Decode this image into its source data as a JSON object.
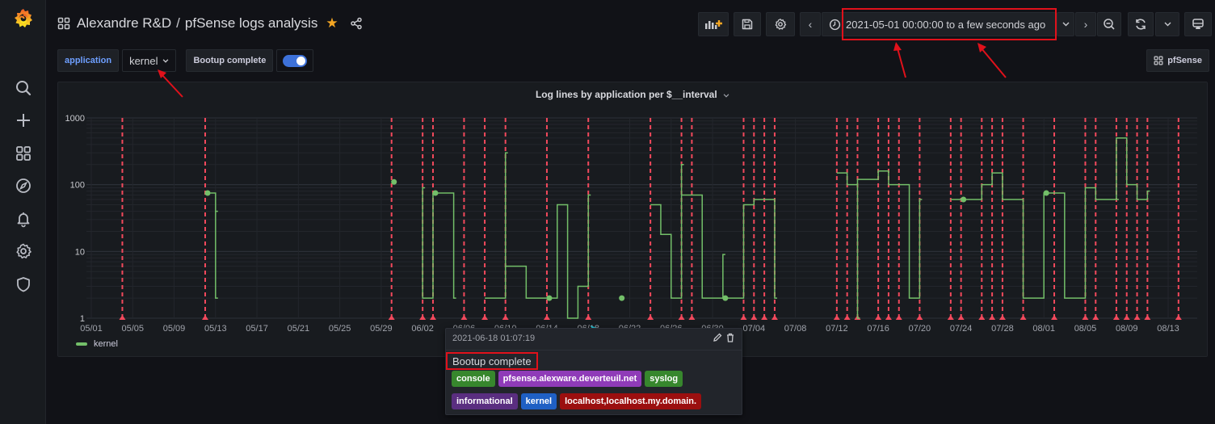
{
  "sidebar": {
    "items": [
      {
        "name": "search",
        "icon": "search-icon"
      },
      {
        "name": "create",
        "icon": "plus-icon"
      },
      {
        "name": "dashboards",
        "icon": "dashboards-grid-icon"
      },
      {
        "name": "explore",
        "icon": "compass-icon"
      },
      {
        "name": "alerting",
        "icon": "bell-icon"
      },
      {
        "name": "configuration",
        "icon": "gear-icon"
      },
      {
        "name": "server-admin",
        "icon": "shield-icon"
      }
    ]
  },
  "header": {
    "folder": "Alexandre R&D",
    "separator": "/",
    "title": "pfSense logs analysis",
    "starred": true
  },
  "toolbar": {
    "add_panel": "add-panel-icon",
    "save": "save-icon",
    "settings": "gear-icon",
    "time_back": "‹",
    "time_range": "2021-05-01 00:00:00 to a few seconds ago",
    "time_forward": "›",
    "zoom_out": "zoom-out-icon",
    "refresh": "refresh-icon",
    "refresh_interval": "⌄",
    "tv_mode": "monitor-icon"
  },
  "variables": {
    "application_label": "application",
    "application_value": "kernel",
    "annotation_label": "Bootup complete",
    "annotation_enabled": true
  },
  "dashboard_link": {
    "label": "pfSense"
  },
  "panel": {
    "title": "Log lines by application per $__interval",
    "legend": [
      {
        "name": "kernel",
        "color": "#73bf69"
      }
    ]
  },
  "tooltip": {
    "time": "2021-06-18 01:07:19",
    "text": "Bootup complete",
    "tags": [
      {
        "label": "console",
        "color": "#37872d"
      },
      {
        "label": "pfsense.alexware.deverteuil.net",
        "color": "#8f3bb8"
      },
      {
        "label": "syslog",
        "color": "#37872d"
      },
      {
        "label": "informational",
        "color": "#5a2e80"
      },
      {
        "label": "kernel",
        "color": "#1f60c4"
      },
      {
        "label": "localhost,localhost.my.domain.",
        "color": "#9b0f0f"
      }
    ]
  },
  "colors": {
    "annotation": "#f2495c",
    "series": "#73bf69",
    "highlight_box": "#e0111b",
    "arrow": "#e0111b",
    "cursor": "#26c6da"
  },
  "chart_data": {
    "type": "line",
    "title": "Log lines by application per $__interval",
    "xlabel": "",
    "ylabel": "",
    "yscale": "log",
    "ylim": [
      1,
      1000
    ],
    "y_ticks": [
      "1",
      "10",
      "100",
      "1000"
    ],
    "x_ticks": [
      "05/01",
      "05/05",
      "05/09",
      "05/13",
      "05/17",
      "05/21",
      "05/25",
      "05/29",
      "06/02",
      "06/06",
      "06/10",
      "06/14",
      "06/18",
      "06/22",
      "06/26",
      "06/30",
      "07/04",
      "07/08",
      "07/12",
      "07/16",
      "07/20",
      "07/24",
      "07/28",
      "08/01",
      "08/05",
      "08/09",
      "08/13"
    ],
    "grid": true,
    "legend_position": "bottom-left",
    "series": [
      {
        "name": "kernel",
        "style": "step",
        "points": [
          {
            "x": "05/12",
            "y": 75
          },
          {
            "x": "05/13",
            "y": 40
          },
          {
            "x": "05/13",
            "y": 2
          },
          {
            "x": "05/30",
            "y": 110
          },
          {
            "x": "06/02",
            "y": 90
          },
          {
            "x": "06/02",
            "y": 2
          },
          {
            "x": "06/03",
            "y": 75
          },
          {
            "x": "06/05",
            "y": 2
          },
          {
            "x": "06/08",
            "y": 2
          },
          {
            "x": "06/10",
            "y": 300
          },
          {
            "x": "06/10",
            "y": 6
          },
          {
            "x": "06/12",
            "y": 2
          },
          {
            "x": "06/14",
            "y": 2
          },
          {
            "x": "06/15",
            "y": 50
          },
          {
            "x": "06/16",
            "y": 1
          },
          {
            "x": "06/17",
            "y": 3
          },
          {
            "x": "06/18",
            "y": 70
          },
          {
            "x": "06/21",
            "y": 2
          },
          {
            "x": "06/24",
            "y": 50
          },
          {
            "x": "06/25",
            "y": 18
          },
          {
            "x": "06/26",
            "y": 2
          },
          {
            "x": "06/27",
            "y": 200
          },
          {
            "x": "06/27",
            "y": 70
          },
          {
            "x": "06/29",
            "y": 2
          },
          {
            "x": "07/01",
            "y": 9
          },
          {
            "x": "07/01",
            "y": 2
          },
          {
            "x": "07/03",
            "y": 50
          },
          {
            "x": "07/04",
            "y": 60
          },
          {
            "x": "07/06",
            "y": 2
          },
          {
            "x": "07/12",
            "y": 150
          },
          {
            "x": "07/13",
            "y": 100
          },
          {
            "x": "07/14",
            "y": 1
          },
          {
            "x": "07/14",
            "y": 120
          },
          {
            "x": "07/16",
            "y": 160
          },
          {
            "x": "07/17",
            "y": 100
          },
          {
            "x": "07/19",
            "y": 2
          },
          {
            "x": "07/20",
            "y": 60
          },
          {
            "x": "07/23",
            "y": 60
          },
          {
            "x": "07/24",
            "y": 60
          },
          {
            "x": "07/26",
            "y": 100
          },
          {
            "x": "07/27",
            "y": 150
          },
          {
            "x": "07/28",
            "y": 60
          },
          {
            "x": "07/30",
            "y": 2
          },
          {
            "x": "08/01",
            "y": 75
          },
          {
            "x": "08/03",
            "y": 2
          },
          {
            "x": "08/05",
            "y": 90
          },
          {
            "x": "08/06",
            "y": 60
          },
          {
            "x": "08/08",
            "y": 60
          },
          {
            "x": "08/08",
            "y": 500
          },
          {
            "x": "08/09",
            "y": 100
          },
          {
            "x": "08/10",
            "y": 60
          },
          {
            "x": "08/11",
            "y": 80
          }
        ]
      }
    ],
    "annotations": {
      "name": "Bootup complete",
      "color": "#f2495c",
      "dates": [
        "05/04",
        "05/12",
        "05/30",
        "06/02",
        "06/03",
        "06/06",
        "06/08",
        "06/10",
        "06/14",
        "06/18",
        "06/24",
        "06/27",
        "06/28",
        "07/03",
        "07/04",
        "07/05",
        "07/06",
        "07/12",
        "07/13",
        "07/14",
        "07/16",
        "07/17",
        "07/18",
        "07/20",
        "07/23",
        "07/24",
        "07/26",
        "07/27",
        "07/28",
        "07/30",
        "08/02",
        "08/05",
        "08/06",
        "08/08",
        "08/09",
        "08/10",
        "08/11",
        "08/14"
      ]
    }
  }
}
